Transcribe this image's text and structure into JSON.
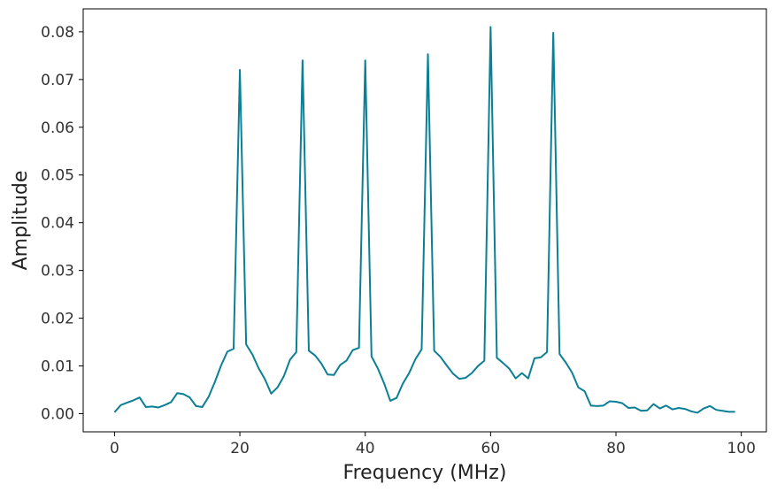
{
  "chart_data": {
    "type": "line",
    "title": "",
    "xlabel": "Frequency (MHz)",
    "ylabel": "Amplitude",
    "xlim": [
      -5,
      104
    ],
    "ylim": [
      -0.0038,
      0.0848
    ],
    "grid": false,
    "line_color": "#0a7f96",
    "xticks": [
      0,
      20,
      40,
      60,
      80,
      100
    ],
    "xtick_labels": [
      "0",
      "20",
      "40",
      "60",
      "80",
      "100"
    ],
    "yticks": [
      0,
      0.01,
      0.02,
      0.03,
      0.04,
      0.05,
      0.06,
      0.07,
      0.08
    ],
    "ytick_labels": [
      "0.00",
      "0.01",
      "0.02",
      "0.03",
      "0.04",
      "0.05",
      "0.06",
      "0.07",
      "0.08"
    ],
    "series": [
      {
        "x": [
          0,
          1,
          2,
          3,
          4,
          5,
          6,
          7,
          8,
          9,
          10,
          11,
          12,
          13,
          14,
          15,
          16,
          17,
          18,
          19,
          20,
          21,
          22,
          23,
          24,
          25,
          26,
          27,
          28,
          29,
          30,
          31,
          32,
          33,
          34,
          35,
          36,
          37,
          38,
          39,
          40,
          41,
          42,
          43,
          44,
          45,
          46,
          47,
          48,
          49,
          50,
          51,
          52,
          53,
          54,
          55,
          56,
          57,
          58,
          59,
          60,
          61,
          62,
          63,
          64,
          65,
          66,
          67,
          68,
          69,
          70,
          71,
          72,
          73,
          74,
          75,
          76,
          77,
          78,
          79,
          80,
          81,
          82,
          83,
          84,
          85,
          86,
          87,
          88,
          89,
          90,
          91,
          92,
          93,
          94,
          95,
          96,
          97,
          98,
          99
        ],
        "y": [
          0.0003,
          0.0018,
          0.0023,
          0.0028,
          0.0034,
          0.0014,
          0.0015,
          0.0013,
          0.0018,
          0.0024,
          0.0043,
          0.0041,
          0.0034,
          0.0016,
          0.0014,
          0.0035,
          0.0066,
          0.0101,
          0.013,
          0.0136,
          0.072,
          0.0145,
          0.0124,
          0.0095,
          0.0072,
          0.0042,
          0.0055,
          0.0078,
          0.0113,
          0.0129,
          0.074,
          0.0132,
          0.0122,
          0.0105,
          0.0082,
          0.0081,
          0.0102,
          0.0111,
          0.0133,
          0.0138,
          0.074,
          0.012,
          0.0095,
          0.0064,
          0.0027,
          0.0033,
          0.0063,
          0.0085,
          0.0114,
          0.0135,
          0.0753,
          0.0132,
          0.0119,
          0.0101,
          0.0084,
          0.0073,
          0.0075,
          0.0085,
          0.01,
          0.0111,
          0.081,
          0.0117,
          0.0106,
          0.0094,
          0.0074,
          0.0085,
          0.0074,
          0.0116,
          0.0118,
          0.0129,
          0.0798,
          0.0125,
          0.0107,
          0.0086,
          0.0055,
          0.0047,
          0.0017,
          0.0016,
          0.0017,
          0.0026,
          0.0025,
          0.0022,
          0.0012,
          0.0013,
          0.0006,
          0.0007,
          0.002,
          0.0011,
          0.0017,
          0.0009,
          0.0012,
          0.001,
          0.0005,
          0.0002,
          0.0011,
          0.0016,
          0.0008,
          0.0006,
          0.0004,
          0.0004
        ]
      }
    ]
  }
}
